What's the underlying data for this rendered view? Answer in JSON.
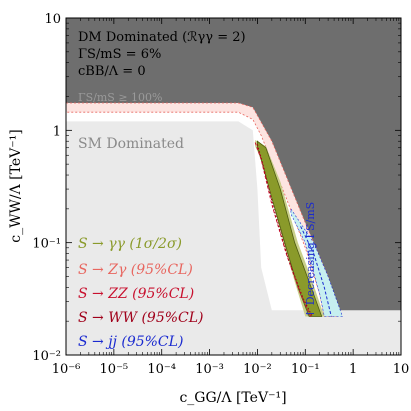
{
  "chart_data": {
    "type": "area",
    "x_scale": "log",
    "y_scale": "log",
    "xlim": [
      1e-06,
      10
    ],
    "ylim": [
      0.01,
      10
    ],
    "x_ticks": [
      {
        "value": 1e-06,
        "label": "10⁻⁶"
      },
      {
        "value": 1e-05,
        "label": "10⁻⁵"
      },
      {
        "value": 0.0001,
        "label": "10⁻⁴"
      },
      {
        "value": 0.001,
        "label": "10⁻³"
      },
      {
        "value": 0.01,
        "label": "10⁻²"
      },
      {
        "value": 0.1,
        "label": "10⁻¹"
      },
      {
        "value": 1,
        "label": "1"
      },
      {
        "value": 10,
        "label": "10"
      }
    ],
    "y_ticks": [
      {
        "value": 0.01,
        "label": "10⁻²"
      },
      {
        "value": 0.1,
        "label": "10⁻¹"
      },
      {
        "value": 1,
        "label": "1"
      },
      {
        "value": 10,
        "label": "10"
      }
    ],
    "xlabel": "c_GG/Λ  [TeV⁻¹]",
    "ylabel": "c_WW/Λ  [TeV⁻¹]",
    "annotations": {
      "dm_line1": "DM Dominated (ℛγγ = 2)",
      "dm_line2": "ΓS/mS = 6%",
      "dm_line3": "cBB/Λ = 0",
      "width_bound": "ΓS/mS ≥ 100%",
      "sm_dominated": "SM Dominated",
      "decreasing": "↑ Decreasing ΓS/mS"
    },
    "legend_placement": "bottom-left",
    "legend": [
      {
        "label": "S → γγ (1σ/2σ)",
        "color": "#8a9a2a"
      },
      {
        "label": "S → Zγ (95%CL)",
        "color": "#e8665f"
      },
      {
        "label": "S → ZZ (95%CL)",
        "color": "#c8102e"
      },
      {
        "label": "S → WW (95%CL)",
        "color": "#a0001a"
      },
      {
        "label": "S → jj (95%CL)",
        "color": "#1a2ad0"
      }
    ],
    "regions": {
      "width_excluded": {
        "color": "#6e6e6e",
        "boundary": [
          [
            1e-06,
            1.75
          ],
          [
            0.004,
            1.75
          ],
          [
            0.008,
            1.6
          ],
          [
            0.02,
            0.8
          ],
          [
            0.1,
            0.15
          ],
          [
            0.3,
            0.05
          ],
          [
            0.6,
            0.022
          ],
          [
            1,
            0.022
          ],
          [
            10,
            0.022
          ]
        ]
      },
      "sm_dominated": {
        "color": "#eaeaea",
        "boundary": [
          [
            1e-06,
            1.2
          ],
          [
            0.004,
            1.2
          ],
          [
            0.008,
            1.0
          ],
          [
            0.01,
            0.3
          ],
          [
            0.012,
            0.06
          ],
          [
            0.02,
            0.025
          ],
          [
            10,
            0.025
          ]
        ]
      },
      "zgamma_band": {
        "color": "#fde4e1",
        "upper": [
          [
            1e-06,
            1.75
          ],
          [
            0.004,
            1.75
          ],
          [
            0.008,
            1.6
          ],
          [
            0.02,
            0.8
          ],
          [
            0.1,
            0.15
          ],
          [
            0.3,
            0.05
          ],
          [
            0.5,
            0.022
          ]
        ],
        "lower": [
          [
            1e-06,
            1.45
          ],
          [
            0.004,
            1.45
          ],
          [
            0.008,
            1.25
          ],
          [
            0.012,
            0.9
          ],
          [
            0.04,
            0.25
          ],
          [
            0.1,
            0.09
          ],
          [
            0.2,
            0.035
          ],
          [
            0.25,
            0.022
          ]
        ]
      },
      "jj_band": {
        "color": "#c6eff0",
        "upper": [
          [
            0.05,
            0.2
          ],
          [
            0.15,
            0.1
          ],
          [
            0.3,
            0.05
          ],
          [
            0.6,
            0.022
          ]
        ],
        "lower": [
          [
            0.05,
            0.18
          ],
          [
            0.1,
            0.1
          ],
          [
            0.2,
            0.035
          ],
          [
            0.25,
            0.022
          ]
        ]
      },
      "gamma_gamma_2sigma": {
        "color": "#c9cf8a",
        "upper": [
          [
            0.009,
            0.82
          ],
          [
            0.015,
            0.72
          ],
          [
            0.03,
            0.35
          ],
          [
            0.07,
            0.1
          ],
          [
            0.13,
            0.05
          ],
          [
            0.25,
            0.022
          ]
        ],
        "lower": [
          [
            0.009,
            0.72
          ],
          [
            0.011,
            0.6
          ],
          [
            0.018,
            0.3
          ],
          [
            0.035,
            0.1
          ],
          [
            0.06,
            0.045
          ],
          [
            0.1,
            0.022
          ]
        ]
      },
      "gamma_gamma_1sigma": {
        "color": "#8a9a2a",
        "upper": [
          [
            0.01,
            0.8
          ],
          [
            0.015,
            0.7
          ],
          [
            0.03,
            0.3
          ],
          [
            0.06,
            0.1
          ],
          [
            0.12,
            0.045
          ],
          [
            0.22,
            0.022
          ]
        ],
        "lower": [
          [
            0.01,
            0.7
          ],
          [
            0.012,
            0.55
          ],
          [
            0.02,
            0.25
          ],
          [
            0.04,
            0.09
          ],
          [
            0.07,
            0.04
          ],
          [
            0.12,
            0.022
          ]
        ]
      },
      "zz_line": {
        "color": "#c8102e",
        "points": [
          [
            0.009,
            0.78
          ],
          [
            0.012,
            0.55
          ],
          [
            0.02,
            0.22
          ],
          [
            0.04,
            0.08
          ],
          [
            0.08,
            0.035
          ],
          [
            0.13,
            0.022
          ]
        ]
      },
      "ww_line": {
        "color": "#a0001a",
        "points": [
          [
            0.01,
            0.75
          ],
          [
            0.013,
            0.5
          ],
          [
            0.022,
            0.2
          ],
          [
            0.045,
            0.07
          ],
          [
            0.09,
            0.032
          ],
          [
            0.14,
            0.022
          ]
        ]
      },
      "jj_line": {
        "color": "#1a2ad0",
        "points": [
          [
            0.08,
            0.14
          ],
          [
            0.15,
            0.08
          ],
          [
            0.25,
            0.04
          ],
          [
            0.35,
            0.022
          ]
        ]
      }
    }
  }
}
